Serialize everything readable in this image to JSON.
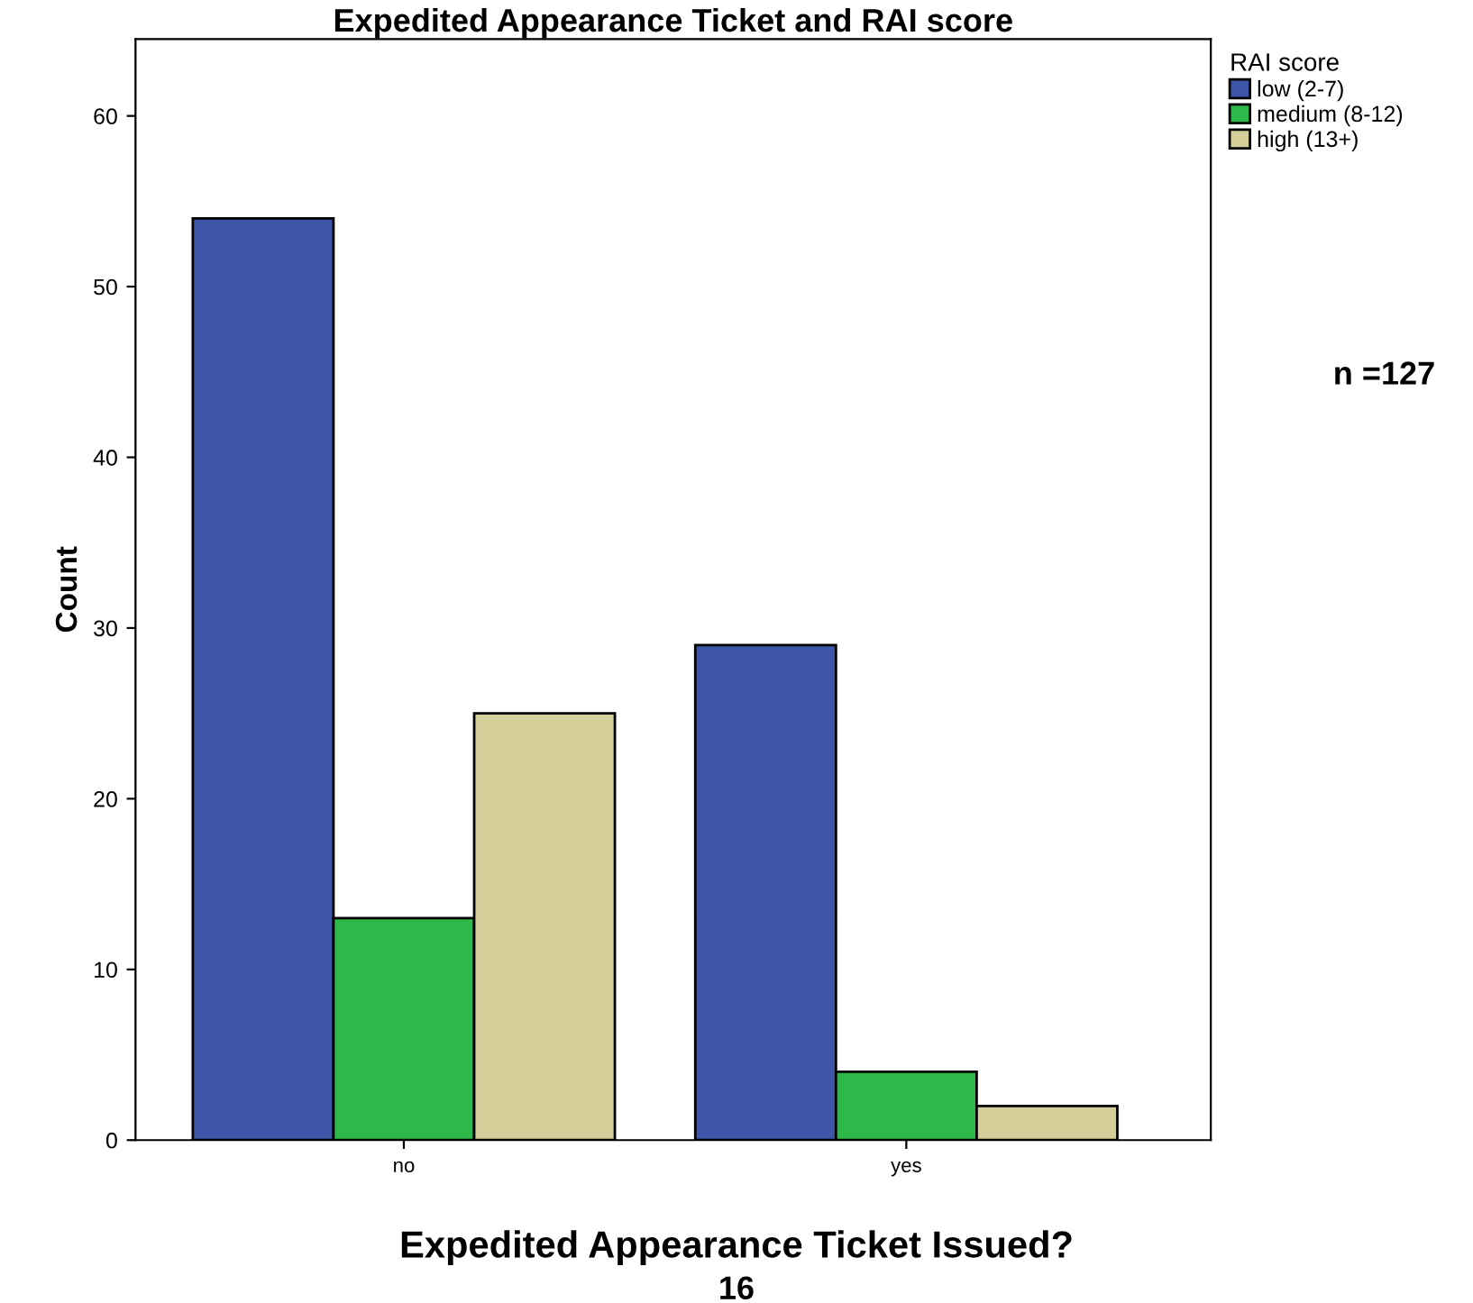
{
  "chart_data": {
    "type": "bar",
    "title": "Expedited Appearance Ticket and RAI score",
    "xlabel": "Expedited Appearance Ticket Issued?",
    "ylabel": "Count",
    "legend_title": "RAI score",
    "categories": [
      "no",
      "yes"
    ],
    "series": [
      {
        "name": "low (2-7)",
        "color": "#3d56a8",
        "values": [
          54,
          29
        ]
      },
      {
        "name": "medium (8-12)",
        "color": "#2eb84a",
        "values": [
          13,
          4
        ]
      },
      {
        "name": "high (13+)",
        "color": "#d4cf98",
        "values": [
          25,
          2
        ]
      }
    ],
    "ylim": [
      0,
      64.5
    ],
    "yticks": [
      0,
      10,
      20,
      30,
      40,
      50,
      60
    ],
    "grid": false,
    "legend": "top right",
    "annotations": [
      "n =127",
      "16"
    ]
  }
}
